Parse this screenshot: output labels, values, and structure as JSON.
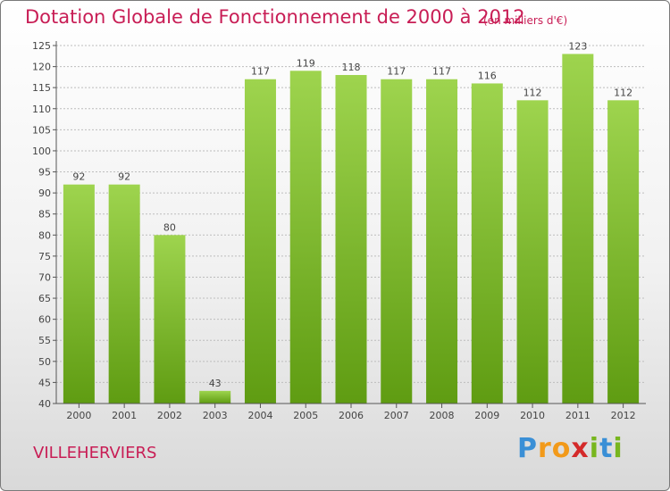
{
  "header": {
    "title": "Dotation Globale de Fonctionnement de 2000 à 2012",
    "unit": "(en milliers d'€)"
  },
  "commune": "VILLEHERVIERS",
  "logo": {
    "text": "Proxiti",
    "letters": [
      "P",
      "r",
      "o",
      "x",
      "i",
      "t",
      "i"
    ],
    "colors": [
      "#3a8fd6",
      "#f29a1a",
      "#f29a1a",
      "#d42a2a",
      "#78b61e",
      "#3a8fd6",
      "#78b61e"
    ]
  },
  "colors": {
    "title": "#c81d55",
    "bar_top": "#9ed44e",
    "bar_bottom": "#5f9c12",
    "grid": "#bdbdbd"
  },
  "chart_data": {
    "type": "bar",
    "title": "Dotation Globale de Fonctionnement de 2000 à 2012",
    "subtitle": "(en milliers d'€)",
    "categories": [
      "2000",
      "2001",
      "2002",
      "2003",
      "2004",
      "2005",
      "2006",
      "2007",
      "2008",
      "2009",
      "2010",
      "2011",
      "2012"
    ],
    "values": [
      92,
      92,
      80,
      43,
      117,
      119,
      118,
      117,
      117,
      116,
      112,
      123,
      112
    ],
    "ylim": [
      40,
      125
    ],
    "yticks": [
      40,
      45,
      50,
      55,
      60,
      65,
      70,
      75,
      80,
      85,
      90,
      95,
      100,
      105,
      110,
      115,
      120,
      125
    ],
    "grid": true
  }
}
